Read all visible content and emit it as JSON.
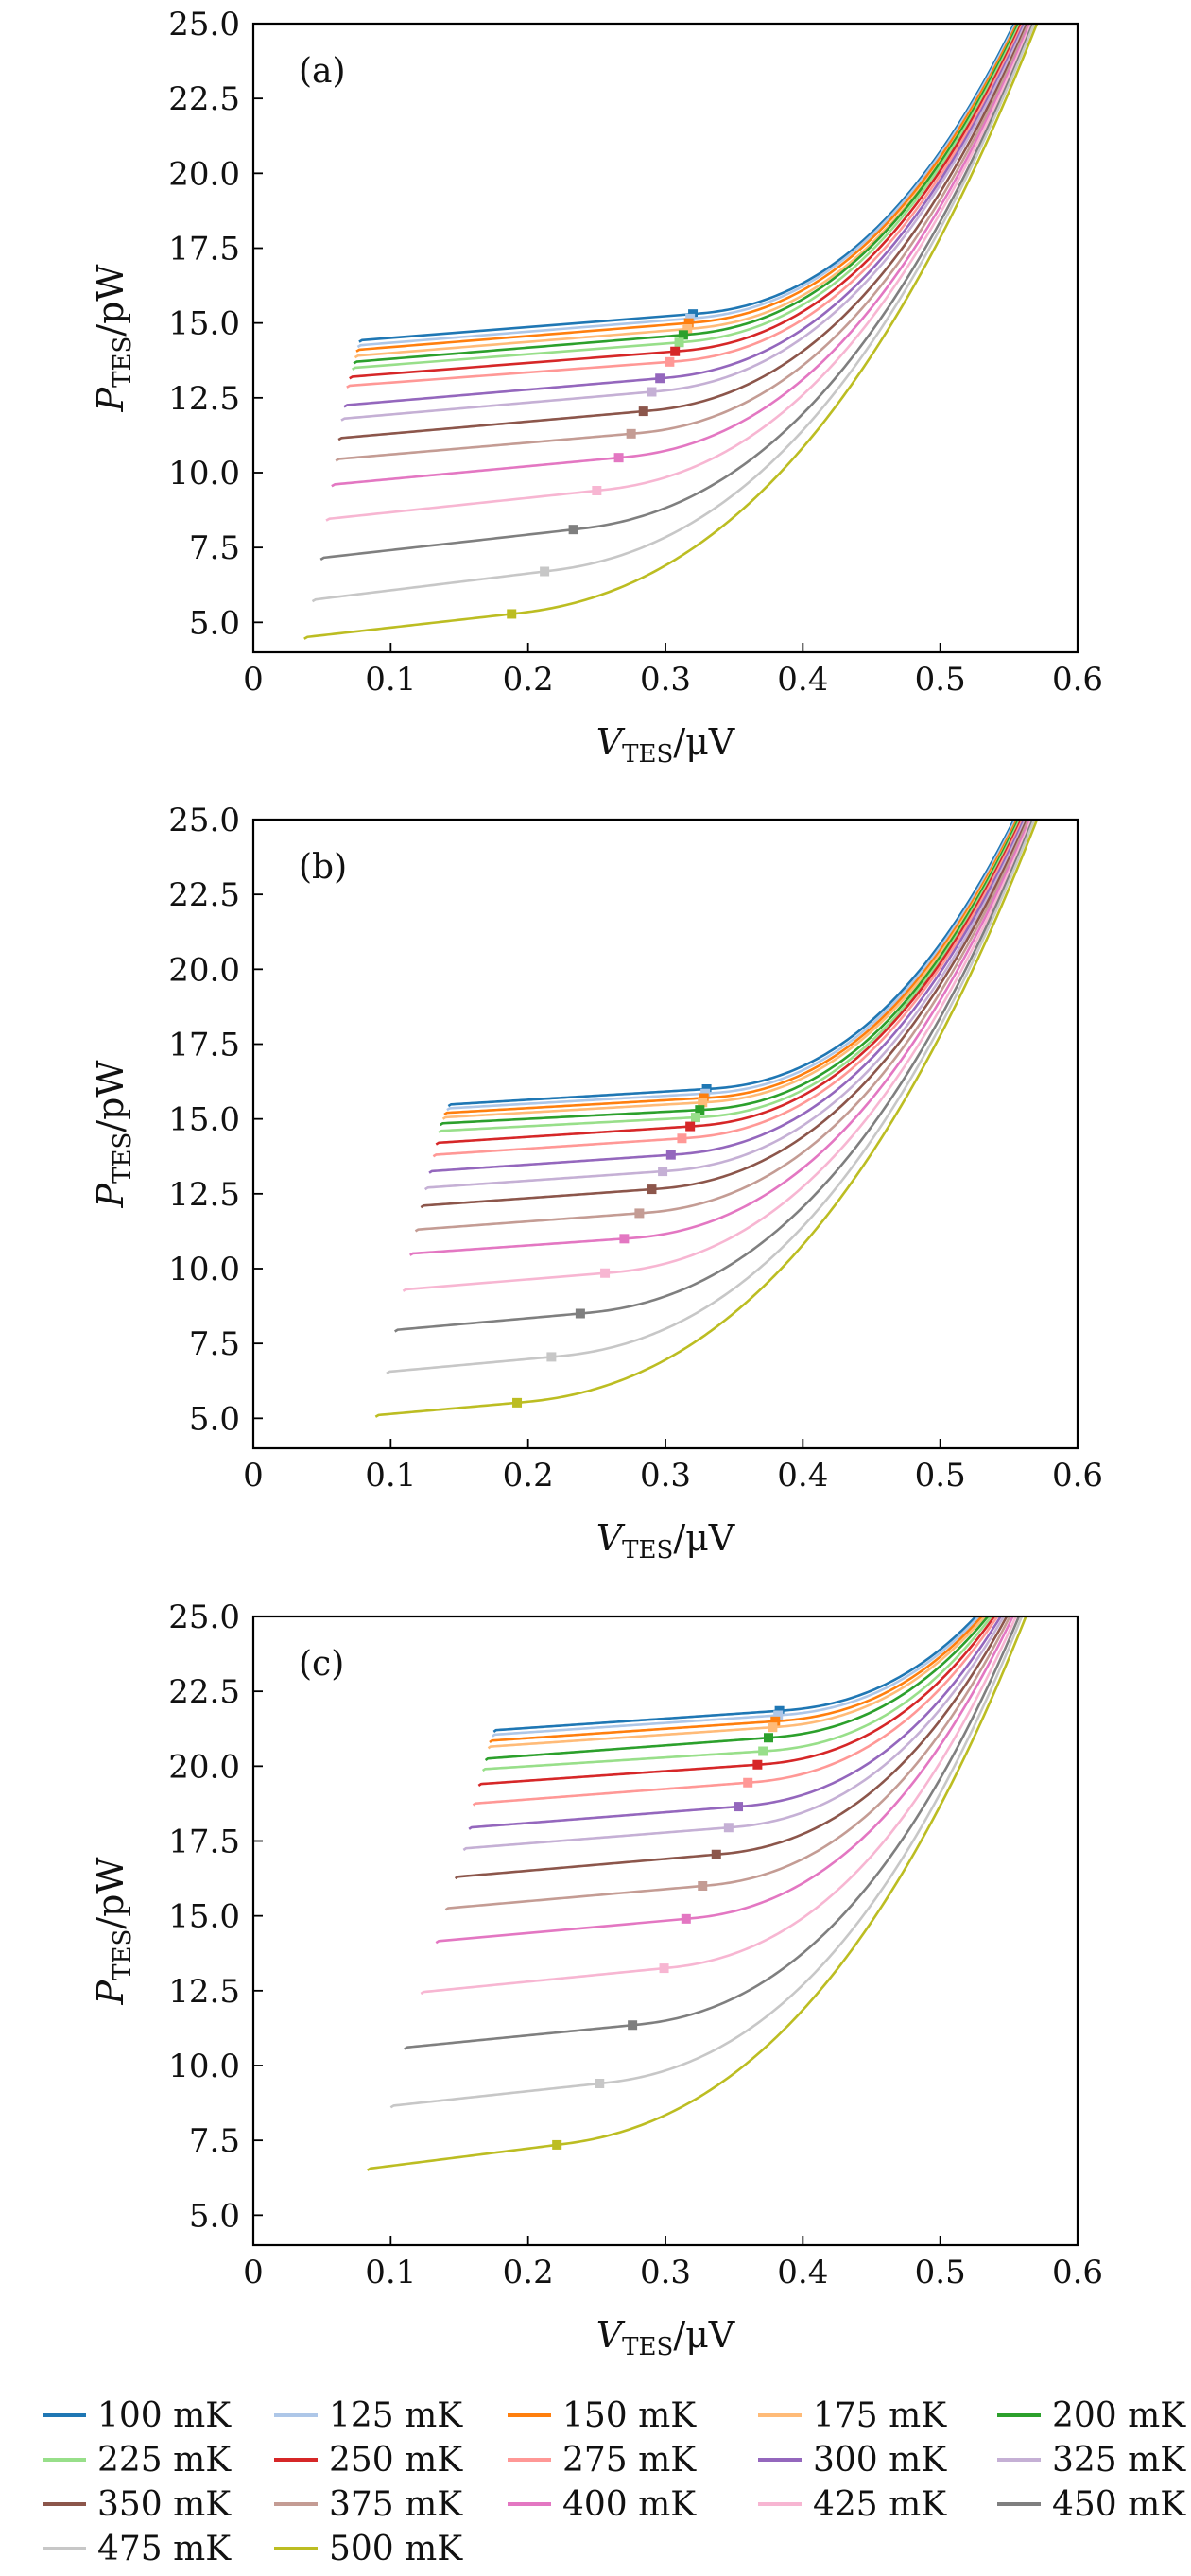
{
  "figure": {
    "legend": [
      {
        "label": "100 mK",
        "color": "#1f77b4"
      },
      {
        "label": "125 mK",
        "color": "#aec7e8"
      },
      {
        "label": "150 mK",
        "color": "#ff7f0e"
      },
      {
        "label": "175 mK",
        "color": "#ffbb78"
      },
      {
        "label": "200 mK",
        "color": "#2ca02c"
      },
      {
        "label": "225 mK",
        "color": "#98df8a"
      },
      {
        "label": "250 mK",
        "color": "#d62728"
      },
      {
        "label": "275 mK",
        "color": "#ff9896"
      },
      {
        "label": "300 mK",
        "color": "#9467bd"
      },
      {
        "label": "325 mK",
        "color": "#c5b0d5"
      },
      {
        "label": "350 mK",
        "color": "#8c564b"
      },
      {
        "label": "375 mK",
        "color": "#c49c94"
      },
      {
        "label": "400 mK",
        "color": "#e377c2"
      },
      {
        "label": "425 mK",
        "color": "#f7b6d2"
      },
      {
        "label": "450 mK",
        "color": "#7f7f7f"
      },
      {
        "label": "475 mK",
        "color": "#c7c7c7"
      },
      {
        "label": "500 mK",
        "color": "#bcbd22"
      }
    ]
  },
  "chart_data": [
    {
      "type": "line",
      "panel_label": "(a)",
      "xlabel_main": "V",
      "xlabel_sub": "TES",
      "xlabel_unit": "/μV",
      "ylabel_main": "P",
      "ylabel_sub": "TES",
      "ylabel_unit": "/pW",
      "xlim": [
        0,
        0.6
      ],
      "ylim": [
        4,
        25
      ],
      "xticks": [
        0,
        0.1,
        0.2,
        0.3,
        0.4,
        0.5,
        0.6
      ],
      "xtick_labels": [
        "0",
        "0.1",
        "0.2",
        "0.3",
        "0.4",
        "0.5",
        "0.6"
      ],
      "yticks": [
        5,
        7.5,
        10,
        12.5,
        15,
        17.5,
        20,
        22.5,
        25
      ],
      "ytick_labels": [
        "5.0",
        "7.5",
        "10.0",
        "12.5",
        "15.0",
        "17.5",
        "20.0",
        "22.5",
        "25.0"
      ],
      "series": [
        {
          "name": "100 mK",
          "x_start": 0.077,
          "p_start": 14.42,
          "x_knee": 0.32,
          "p_knee": 15.3,
          "x_end": 0.557
        },
        {
          "name": "125 mK",
          "x_start": 0.076,
          "p_start": 14.25,
          "x_knee": 0.318,
          "p_knee": 15.15,
          "x_end": 0.558
        },
        {
          "name": "150 mK",
          "x_start": 0.075,
          "p_start": 14.1,
          "x_knee": 0.317,
          "p_knee": 15.0,
          "x_end": 0.559
        },
        {
          "name": "175 mK",
          "x_start": 0.074,
          "p_start": 13.9,
          "x_knee": 0.316,
          "p_knee": 14.8,
          "x_end": 0.56
        },
        {
          "name": "200 mK",
          "x_start": 0.073,
          "p_start": 13.7,
          "x_knee": 0.313,
          "p_knee": 14.6,
          "x_end": 0.56
        },
        {
          "name": "225 mK",
          "x_start": 0.072,
          "p_start": 13.5,
          "x_knee": 0.31,
          "p_knee": 14.35,
          "x_end": 0.561
        },
        {
          "name": "250 mK",
          "x_start": 0.07,
          "p_start": 13.2,
          "x_knee": 0.307,
          "p_knee": 14.05,
          "x_end": 0.562
        },
        {
          "name": "275 mK",
          "x_start": 0.068,
          "p_start": 12.9,
          "x_knee": 0.303,
          "p_knee": 13.7,
          "x_end": 0.563
        },
        {
          "name": "300 mK",
          "x_start": 0.066,
          "p_start": 12.25,
          "x_knee": 0.296,
          "p_knee": 13.15,
          "x_end": 0.564
        },
        {
          "name": "325 mK",
          "x_start": 0.064,
          "p_start": 11.8,
          "x_knee": 0.29,
          "p_knee": 12.7,
          "x_end": 0.565
        },
        {
          "name": "350 mK",
          "x_start": 0.062,
          "p_start": 11.15,
          "x_knee": 0.284,
          "p_knee": 12.05,
          "x_end": 0.566
        },
        {
          "name": "375 mK",
          "x_start": 0.06,
          "p_start": 10.45,
          "x_knee": 0.275,
          "p_knee": 11.3,
          "x_end": 0.567
        },
        {
          "name": "400 mK",
          "x_start": 0.057,
          "p_start": 9.6,
          "x_knee": 0.266,
          "p_knee": 10.5,
          "x_end": 0.568
        },
        {
          "name": "425 mK",
          "x_start": 0.053,
          "p_start": 8.45,
          "x_knee": 0.25,
          "p_knee": 9.4,
          "x_end": 0.569
        },
        {
          "name": "450 mK",
          "x_start": 0.049,
          "p_start": 7.15,
          "x_knee": 0.233,
          "p_knee": 8.1,
          "x_end": 0.57
        },
        {
          "name": "475 mK",
          "x_start": 0.043,
          "p_start": 5.75,
          "x_knee": 0.212,
          "p_knee": 6.7,
          "x_end": 0.571
        },
        {
          "name": "500 mK",
          "x_start": 0.037,
          "p_start": 4.5,
          "x_knee": 0.188,
          "p_knee": 5.28,
          "x_end": 0.573
        }
      ]
    },
    {
      "type": "line",
      "panel_label": "(b)",
      "xlabel_main": "V",
      "xlabel_sub": "TES",
      "xlabel_unit": "/μV",
      "ylabel_main": "P",
      "ylabel_sub": "TES",
      "ylabel_unit": "/pW",
      "xlim": [
        0,
        0.6
      ],
      "ylim": [
        4,
        25
      ],
      "xticks": [
        0,
        0.1,
        0.2,
        0.3,
        0.4,
        0.5,
        0.6
      ],
      "xtick_labels": [
        "0",
        "0.1",
        "0.2",
        "0.3",
        "0.4",
        "0.5",
        "0.6"
      ],
      "yticks": [
        5,
        7.5,
        10,
        12.5,
        15,
        17.5,
        20,
        22.5,
        25
      ],
      "ytick_labels": [
        "5.0",
        "7.5",
        "10.0",
        "12.5",
        "15.0",
        "17.5",
        "20.0",
        "22.5",
        "25.0"
      ],
      "series": [
        {
          "name": "100 mK",
          "x_start": 0.142,
          "p_start": 15.48,
          "x_knee": 0.33,
          "p_knee": 16.0,
          "x_end": 0.557
        },
        {
          "name": "125 mK",
          "x_start": 0.141,
          "p_start": 15.35,
          "x_knee": 0.329,
          "p_knee": 15.85,
          "x_end": 0.558
        },
        {
          "name": "150 mK",
          "x_start": 0.139,
          "p_start": 15.2,
          "x_knee": 0.328,
          "p_knee": 15.7,
          "x_end": 0.559
        },
        {
          "name": "175 mK",
          "x_start": 0.138,
          "p_start": 15.05,
          "x_knee": 0.327,
          "p_knee": 15.55,
          "x_end": 0.56
        },
        {
          "name": "200 mK",
          "x_start": 0.136,
          "p_start": 14.85,
          "x_knee": 0.325,
          "p_knee": 15.3,
          "x_end": 0.56
        },
        {
          "name": "225 mK",
          "x_start": 0.135,
          "p_start": 14.6,
          "x_knee": 0.322,
          "p_knee": 15.05,
          "x_end": 0.561
        },
        {
          "name": "250 mK",
          "x_start": 0.133,
          "p_start": 14.2,
          "x_knee": 0.318,
          "p_knee": 14.75,
          "x_end": 0.562
        },
        {
          "name": "275 mK",
          "x_start": 0.131,
          "p_start": 13.8,
          "x_knee": 0.312,
          "p_knee": 14.35,
          "x_end": 0.563
        },
        {
          "name": "300 mK",
          "x_start": 0.128,
          "p_start": 13.25,
          "x_knee": 0.304,
          "p_knee": 13.8,
          "x_end": 0.564
        },
        {
          "name": "325 mK",
          "x_start": 0.125,
          "p_start": 12.7,
          "x_knee": 0.298,
          "p_knee": 13.25,
          "x_end": 0.565
        },
        {
          "name": "350 mK",
          "x_start": 0.122,
          "p_start": 12.1,
          "x_knee": 0.29,
          "p_knee": 12.65,
          "x_end": 0.566
        },
        {
          "name": "375 mK",
          "x_start": 0.118,
          "p_start": 11.3,
          "x_knee": 0.281,
          "p_knee": 11.85,
          "x_end": 0.567
        },
        {
          "name": "400 mK",
          "x_start": 0.114,
          "p_start": 10.5,
          "x_knee": 0.27,
          "p_knee": 11.0,
          "x_end": 0.568
        },
        {
          "name": "425 mK",
          "x_start": 0.109,
          "p_start": 9.3,
          "x_knee": 0.256,
          "p_knee": 9.85,
          "x_end": 0.569
        },
        {
          "name": "450 mK",
          "x_start": 0.103,
          "p_start": 7.95,
          "x_knee": 0.238,
          "p_knee": 8.5,
          "x_end": 0.57
        },
        {
          "name": "475 mK",
          "x_start": 0.097,
          "p_start": 6.55,
          "x_knee": 0.217,
          "p_knee": 7.05,
          "x_end": 0.571
        },
        {
          "name": "500 mK",
          "x_start": 0.089,
          "p_start": 5.1,
          "x_knee": 0.192,
          "p_knee": 5.52,
          "x_end": 0.573
        }
      ]
    },
    {
      "type": "line",
      "panel_label": "(c)",
      "xlabel_main": "V",
      "xlabel_sub": "TES",
      "xlabel_unit": "/μV",
      "ylabel_main": "P",
      "ylabel_sub": "TES",
      "ylabel_unit": "/pW",
      "xlim": [
        0,
        0.6
      ],
      "ylim": [
        4,
        25
      ],
      "xticks": [
        0,
        0.1,
        0.2,
        0.3,
        0.4,
        0.5,
        0.6
      ],
      "xtick_labels": [
        "0",
        "0.1",
        "0.2",
        "0.3",
        "0.4",
        "0.5",
        "0.6"
      ],
      "yticks": [
        5,
        7.5,
        10,
        12.5,
        15,
        17.5,
        20,
        22.5,
        25
      ],
      "ytick_labels": [
        "5.0",
        "7.5",
        "10.0",
        "12.5",
        "15.0",
        "17.5",
        "20.0",
        "22.5",
        "25.0"
      ],
      "series": [
        {
          "name": "100 mK",
          "x_start": 0.175,
          "p_start": 21.2,
          "x_knee": 0.383,
          "p_knee": 21.85,
          "x_end": 0.532
        },
        {
          "name": "125 mK",
          "x_start": 0.174,
          "p_start": 21.05,
          "x_knee": 0.382,
          "p_knee": 21.7,
          "x_end": 0.534
        },
        {
          "name": "150 mK",
          "x_start": 0.172,
          "p_start": 20.85,
          "x_knee": 0.38,
          "p_knee": 21.5,
          "x_end": 0.536
        },
        {
          "name": "175 mK",
          "x_start": 0.171,
          "p_start": 20.65,
          "x_knee": 0.378,
          "p_knee": 21.3,
          "x_end": 0.538
        },
        {
          "name": "200 mK",
          "x_start": 0.169,
          "p_start": 20.25,
          "x_knee": 0.375,
          "p_knee": 20.95,
          "x_end": 0.54
        },
        {
          "name": "225 mK",
          "x_start": 0.167,
          "p_start": 19.9,
          "x_knee": 0.371,
          "p_knee": 20.5,
          "x_end": 0.542
        },
        {
          "name": "250 mK",
          "x_start": 0.164,
          "p_start": 19.4,
          "x_knee": 0.367,
          "p_knee": 20.05,
          "x_end": 0.544
        },
        {
          "name": "275 mK",
          "x_start": 0.16,
          "p_start": 18.75,
          "x_knee": 0.36,
          "p_knee": 19.45,
          "x_end": 0.546
        },
        {
          "name": "300 mK",
          "x_start": 0.157,
          "p_start": 17.95,
          "x_knee": 0.353,
          "p_knee": 18.65,
          "x_end": 0.548
        },
        {
          "name": "325 mK",
          "x_start": 0.153,
          "p_start": 17.25,
          "x_knee": 0.346,
          "p_knee": 17.95,
          "x_end": 0.55
        },
        {
          "name": "350 mK",
          "x_start": 0.147,
          "p_start": 16.3,
          "x_knee": 0.337,
          "p_knee": 17.05,
          "x_end": 0.552
        },
        {
          "name": "375 mK",
          "x_start": 0.14,
          "p_start": 15.25,
          "x_knee": 0.327,
          "p_knee": 16.0,
          "x_end": 0.554
        },
        {
          "name": "400 mK",
          "x_start": 0.133,
          "p_start": 14.15,
          "x_knee": 0.315,
          "p_knee": 14.9,
          "x_end": 0.556
        },
        {
          "name": "425 mK",
          "x_start": 0.122,
          "p_start": 12.45,
          "x_knee": 0.299,
          "p_knee": 13.25,
          "x_end": 0.558
        },
        {
          "name": "450 mK",
          "x_start": 0.11,
          "p_start": 10.6,
          "x_knee": 0.276,
          "p_knee": 11.35,
          "x_end": 0.56
        },
        {
          "name": "475 mK",
          "x_start": 0.1,
          "p_start": 8.65,
          "x_knee": 0.252,
          "p_knee": 9.4,
          "x_end": 0.562
        },
        {
          "name": "500 mK",
          "x_start": 0.083,
          "p_start": 6.55,
          "x_knee": 0.221,
          "p_knee": 7.35,
          "x_end": 0.565
        }
      ]
    }
  ]
}
